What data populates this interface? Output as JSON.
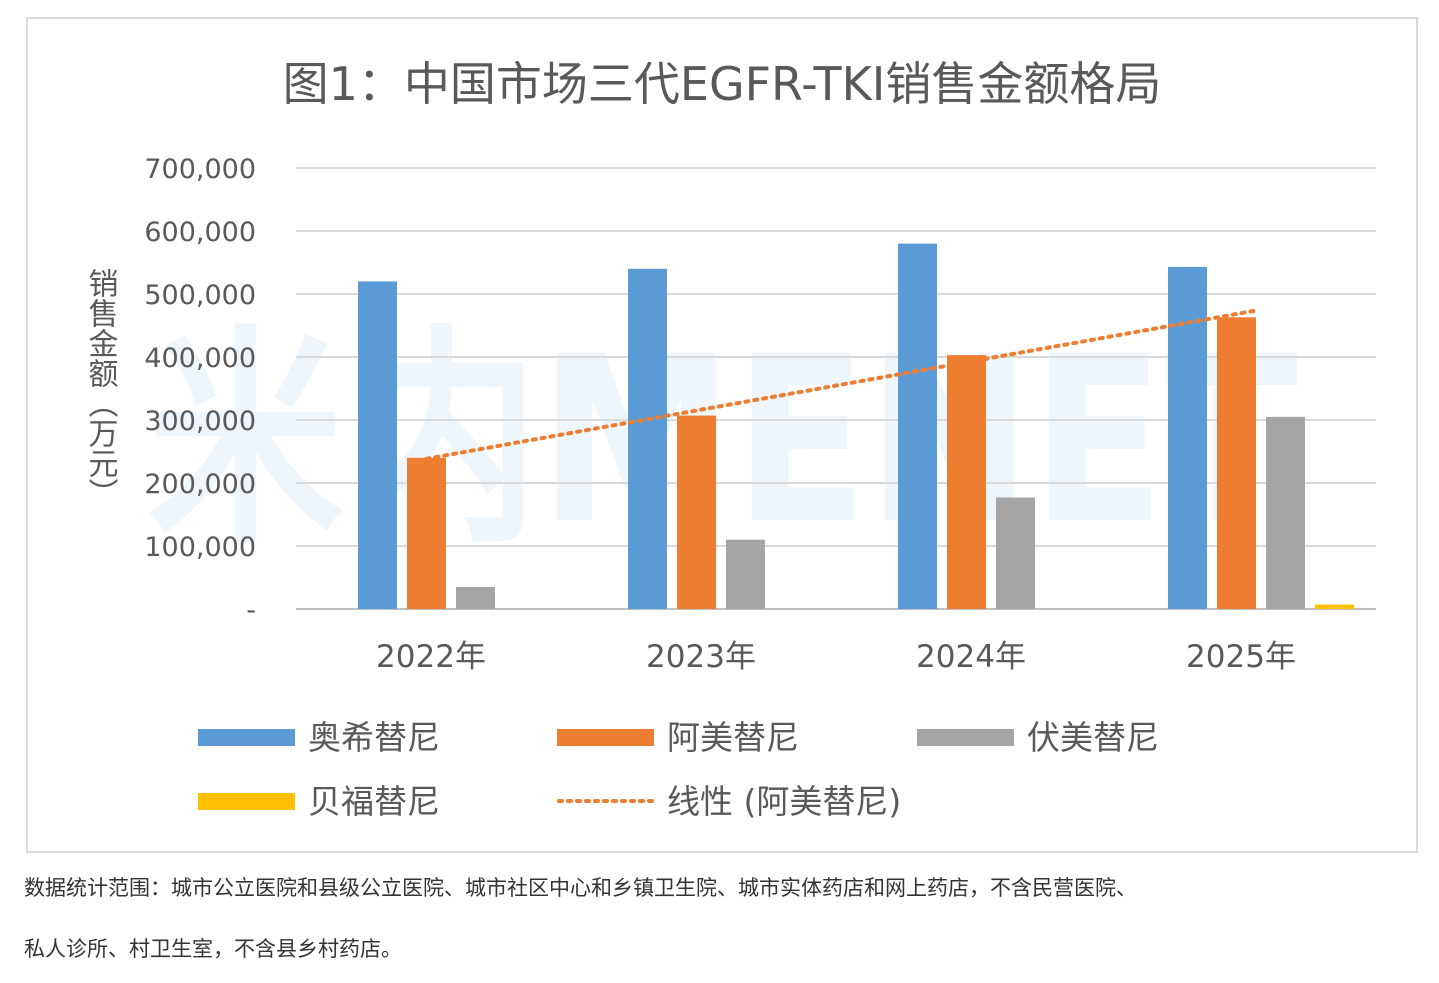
{
  "chart_data": {
    "type": "bar",
    "title": "图1：中国市场三代EGFR-TKI销售金额格局",
    "ylabel": "销售金额（万元）",
    "xlabel": "",
    "categories": [
      "2022年",
      "2023年",
      "2024年",
      "2025年"
    ],
    "ylim": [
      0,
      700000
    ],
    "yticks": [
      0,
      100000,
      200000,
      300000,
      400000,
      500000,
      600000,
      700000
    ],
    "ytick_labels": [
      "-",
      "100,000",
      "200,000",
      "300,000",
      "400,000",
      "500,000",
      "600,000",
      "700,000"
    ],
    "grid": true,
    "legend_position": "bottom",
    "series": [
      {
        "name": "奥希替尼",
        "color": "#5b9bd5",
        "values": [
          520000,
          540000,
          580000,
          543000
        ]
      },
      {
        "name": "阿美替尼",
        "color": "#ed7d31",
        "values": [
          240000,
          307000,
          403000,
          463000
        ]
      },
      {
        "name": "伏美替尼",
        "color": "#a5a5a5",
        "values": [
          35000,
          110000,
          177000,
          305000
        ]
      },
      {
        "name": "贝福替尼",
        "color": "#ffc000",
        "values": [
          0,
          0,
          0,
          7000
        ]
      }
    ],
    "trendline": {
      "name": "线性 (阿美替尼)",
      "color": "#ed7d31",
      "type": "linear",
      "of_series": "阿美替尼"
    },
    "watermark": "米内MENET"
  },
  "footnote": {
    "line1": "数据统计范围：城市公立医院和县级公立医院、城市社区中心和乡镇卫生院、城市实体药店和网上药店，不含民营医院、",
    "line2": "私人诊所、村卫生室，不含县乡村药店。"
  }
}
